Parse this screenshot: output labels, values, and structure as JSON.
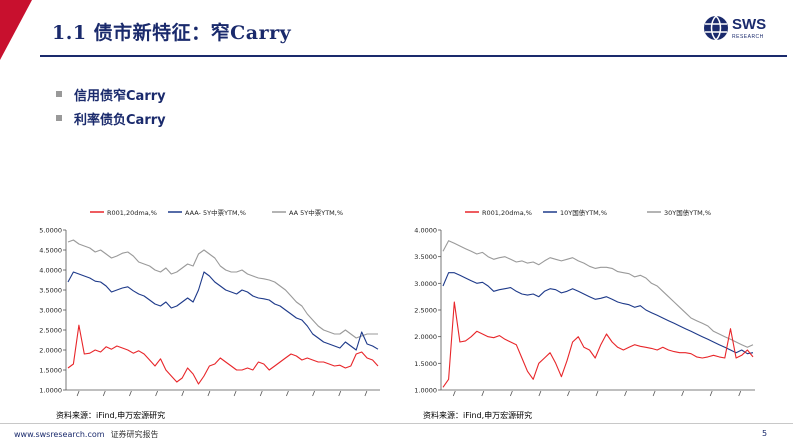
{
  "header": {
    "title": "1.1 债市新特征：窄Carry",
    "logo_text": "SWS",
    "logo_sub": "RESEARCH"
  },
  "bullets": [
    {
      "text": "信用债窄Carry"
    },
    {
      "text": "利率债负Carry"
    }
  ],
  "colors": {
    "red": "#e8262a",
    "navy": "#1e3a8a",
    "gray": "#9a9a9a",
    "brand": "#1a2a6c"
  },
  "chart_data": [
    {
      "type": "line",
      "title": "",
      "ylim": [
        1.0,
        5.0
      ],
      "yticks": [
        "1.0000",
        "1.5000",
        "2.0000",
        "2.5000",
        "3.0000",
        "3.5000",
        "4.0000",
        "4.5000",
        "5.0000"
      ],
      "ytick_values": [
        1.0,
        1.5,
        2.0,
        2.5,
        3.0,
        3.5,
        4.0,
        4.5,
        5.0
      ],
      "n_x_ticks": 12,
      "series": [
        {
          "name": "R001,20dma,%",
          "color": "red",
          "values": [
            1.55,
            1.65,
            2.62,
            1.9,
            1.92,
            2.0,
            1.95,
            2.08,
            2.02,
            2.1,
            2.05,
            2.0,
            1.92,
            1.98,
            1.9,
            1.75,
            1.6,
            1.78,
            1.5,
            1.35,
            1.2,
            1.3,
            1.55,
            1.4,
            1.15,
            1.35,
            1.6,
            1.65,
            1.8,
            1.7,
            1.6,
            1.5,
            1.5,
            1.55,
            1.5,
            1.7,
            1.65,
            1.5,
            1.6,
            1.7,
            1.8,
            1.9,
            1.85,
            1.75,
            1.8,
            1.75,
            1.7,
            1.7,
            1.65,
            1.6,
            1.62,
            1.55,
            1.6,
            1.9,
            1.95,
            1.8,
            1.75,
            1.6
          ]
        },
        {
          "name": "AAA- 5Y中票YTM,%",
          "color": "navy",
          "values": [
            3.7,
            3.95,
            3.9,
            3.85,
            3.8,
            3.72,
            3.7,
            3.6,
            3.45,
            3.5,
            3.55,
            3.58,
            3.48,
            3.4,
            3.35,
            3.25,
            3.15,
            3.1,
            3.2,
            3.05,
            3.1,
            3.2,
            3.3,
            3.2,
            3.5,
            3.95,
            3.85,
            3.7,
            3.6,
            3.5,
            3.45,
            3.4,
            3.5,
            3.45,
            3.35,
            3.3,
            3.28,
            3.25,
            3.15,
            3.1,
            3.0,
            2.9,
            2.8,
            2.75,
            2.6,
            2.4,
            2.3,
            2.2,
            2.15,
            2.1,
            2.05,
            2.2,
            2.1,
            2.0,
            2.45,
            2.15,
            2.1,
            2.02
          ]
        },
        {
          "name": "AA 5Y中票YTM,%",
          "color": "gray",
          "values": [
            4.7,
            4.75,
            4.65,
            4.6,
            4.55,
            4.45,
            4.5,
            4.4,
            4.3,
            4.35,
            4.42,
            4.45,
            4.35,
            4.2,
            4.15,
            4.1,
            4.0,
            3.95,
            4.05,
            3.9,
            3.95,
            4.05,
            4.15,
            4.1,
            4.4,
            4.5,
            4.4,
            4.3,
            4.1,
            4.0,
            3.95,
            3.95,
            4.0,
            3.9,
            3.85,
            3.8,
            3.78,
            3.75,
            3.7,
            3.6,
            3.5,
            3.35,
            3.2,
            3.1,
            2.9,
            2.75,
            2.6,
            2.5,
            2.45,
            2.4,
            2.4,
            2.5,
            2.4,
            2.3,
            2.35,
            2.4,
            2.4,
            2.4
          ]
        }
      ]
    },
    {
      "type": "line",
      "title": "",
      "ylim": [
        1.0,
        4.0
      ],
      "yticks": [
        "1.0000",
        "1.5000",
        "2.0000",
        "2.5000",
        "3.0000",
        "3.5000",
        "4.0000"
      ],
      "ytick_values": [
        1.0,
        1.5,
        2.0,
        2.5,
        3.0,
        3.5,
        4.0
      ],
      "n_x_ticks": 11,
      "series": [
        {
          "name": "R001,20dma,%",
          "color": "red",
          "values": [
            1.05,
            1.2,
            2.65,
            1.9,
            1.92,
            2.0,
            2.1,
            2.05,
            2.0,
            1.98,
            2.02,
            1.95,
            1.9,
            1.85,
            1.6,
            1.35,
            1.2,
            1.5,
            1.6,
            1.7,
            1.5,
            1.25,
            1.55,
            1.9,
            2.0,
            1.8,
            1.75,
            1.6,
            1.85,
            2.05,
            1.9,
            1.8,
            1.75,
            1.8,
            1.85,
            1.82,
            1.8,
            1.78,
            1.75,
            1.8,
            1.75,
            1.72,
            1.7,
            1.7,
            1.68,
            1.62,
            1.6,
            1.62,
            1.65,
            1.62,
            1.6,
            2.15,
            1.6,
            1.65,
            1.75,
            1.62
          ]
        },
        {
          "name": "10Y国债YTM,%",
          "color": "navy",
          "values": [
            2.95,
            3.2,
            3.2,
            3.15,
            3.1,
            3.05,
            3.0,
            3.02,
            2.95,
            2.85,
            2.88,
            2.9,
            2.92,
            2.85,
            2.8,
            2.78,
            2.8,
            2.75,
            2.85,
            2.9,
            2.88,
            2.82,
            2.85,
            2.9,
            2.85,
            2.8,
            2.75,
            2.7,
            2.72,
            2.75,
            2.7,
            2.65,
            2.62,
            2.6,
            2.55,
            2.58,
            2.5,
            2.45,
            2.4,
            2.35,
            2.3,
            2.25,
            2.2,
            2.15,
            2.1,
            2.05,
            2.0,
            1.95,
            1.9,
            1.85,
            1.8,
            1.75,
            1.7,
            1.75,
            1.68,
            1.7
          ]
        },
        {
          "name": "30Y国债YTM,%",
          "color": "gray",
          "values": [
            3.6,
            3.8,
            3.75,
            3.7,
            3.65,
            3.6,
            3.55,
            3.58,
            3.5,
            3.45,
            3.48,
            3.5,
            3.45,
            3.4,
            3.42,
            3.38,
            3.4,
            3.35,
            3.42,
            3.48,
            3.45,
            3.42,
            3.45,
            3.48,
            3.42,
            3.38,
            3.32,
            3.28,
            3.3,
            3.3,
            3.28,
            3.22,
            3.2,
            3.18,
            3.12,
            3.15,
            3.1,
            3.0,
            2.95,
            2.85,
            2.75,
            2.65,
            2.55,
            2.45,
            2.35,
            2.3,
            2.25,
            2.2,
            2.1,
            2.05,
            2.0,
            1.95,
            1.9,
            1.85,
            1.8,
            1.85
          ]
        }
      ]
    }
  ],
  "sources": {
    "left": "资料来源：iFind,申万宏源研究",
    "right": "资料来源：iFind,申万宏源研究"
  },
  "footer": {
    "website": "www.swsresearch.com",
    "disclaimer": "证券研究报告",
    "page": "5"
  }
}
